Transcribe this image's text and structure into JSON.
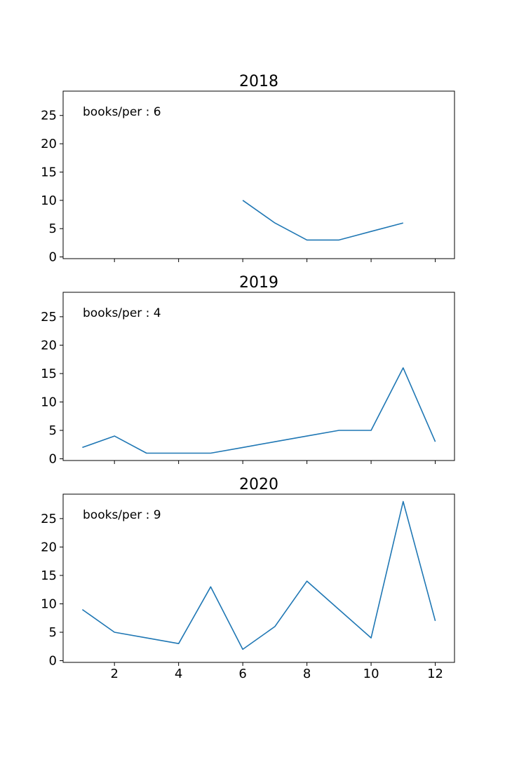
{
  "chart_data": [
    {
      "type": "line",
      "title": "2018",
      "annotation": "books/per : 6",
      "xlim": [
        0.4,
        12.6
      ],
      "ylim": [
        -0.3,
        29.3
      ],
      "xticks": [
        2,
        4,
        6,
        8,
        10,
        12
      ],
      "yticks": [
        0,
        5,
        10,
        15,
        20,
        25
      ],
      "show_xtick_labels": false,
      "series": [
        {
          "color": "#1f77b4",
          "x": [
            6,
            7,
            8,
            9,
            10,
            11
          ],
          "y": [
            10,
            6,
            3,
            3,
            4.5,
            6
          ]
        }
      ]
    },
    {
      "type": "line",
      "title": "2019",
      "annotation": "books/per : 4",
      "xlim": [
        0.4,
        12.6
      ],
      "ylim": [
        -0.3,
        29.3
      ],
      "xticks": [
        2,
        4,
        6,
        8,
        10,
        12
      ],
      "yticks": [
        0,
        5,
        10,
        15,
        20,
        25
      ],
      "show_xtick_labels": false,
      "series": [
        {
          "color": "#1f77b4",
          "x": [
            1,
            2,
            3,
            4,
            5,
            6,
            7,
            8,
            9,
            10,
            11,
            12
          ],
          "y": [
            2,
            4,
            1,
            1,
            1,
            2,
            3,
            4,
            5,
            5,
            16,
            3
          ]
        }
      ]
    },
    {
      "type": "line",
      "title": "2020",
      "annotation": "books/per : 9",
      "xlim": [
        0.4,
        12.6
      ],
      "ylim": [
        -0.3,
        29.3
      ],
      "xticks": [
        2,
        4,
        6,
        8,
        10,
        12
      ],
      "yticks": [
        0,
        5,
        10,
        15,
        20,
        25
      ],
      "show_xtick_labels": true,
      "series": [
        {
          "color": "#1f77b4",
          "x": [
            1,
            2,
            3,
            4,
            5,
            6,
            7,
            8,
            9,
            10,
            11,
            12
          ],
          "y": [
            9,
            5,
            4,
            3,
            13,
            2,
            6,
            14,
            9,
            4,
            28,
            7
          ]
        }
      ]
    }
  ]
}
